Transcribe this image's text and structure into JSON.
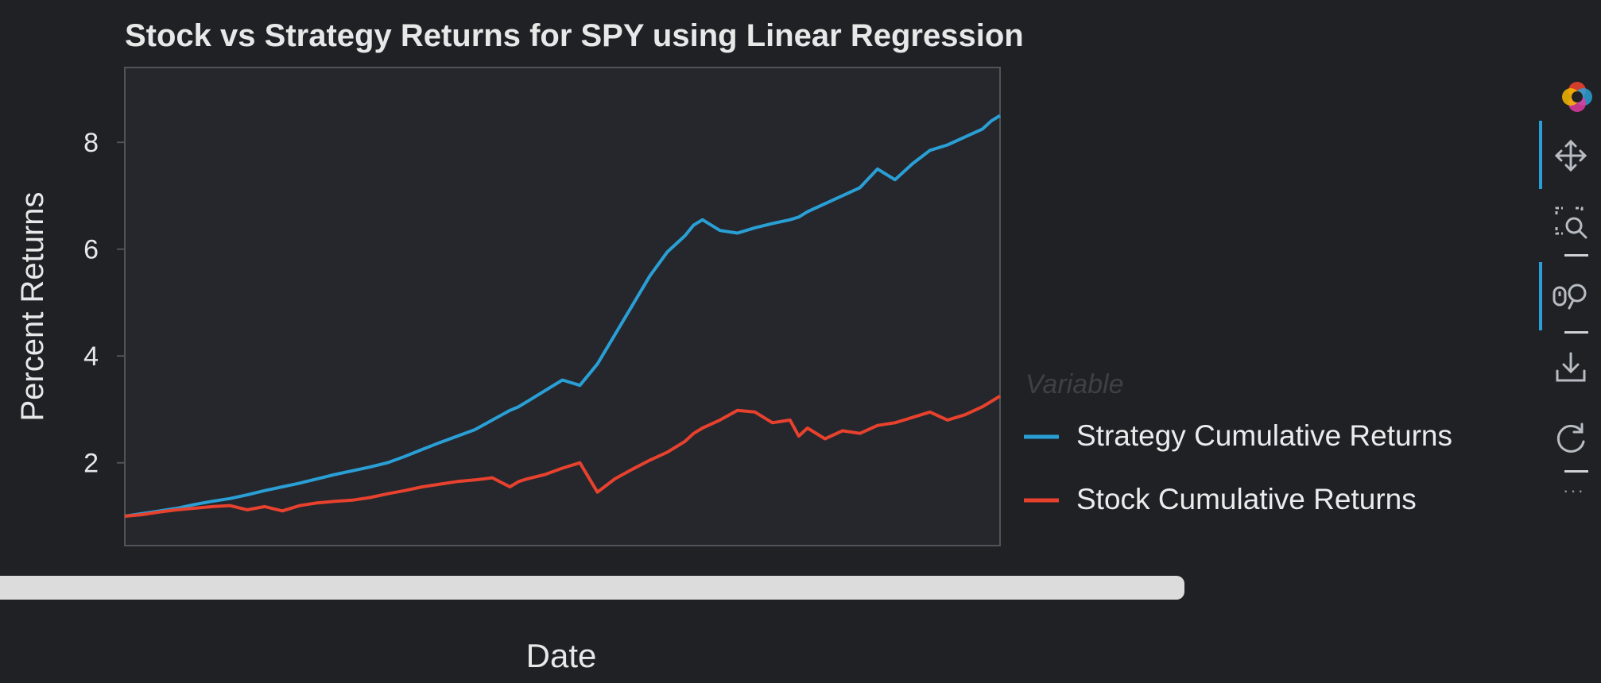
{
  "chart_data": {
    "type": "line",
    "title": "Stock vs Strategy Returns for SPY using Linear Regression",
    "xlabel": "Date",
    "ylabel": "Percent Returns",
    "yticks": [
      2,
      4,
      6,
      8
    ],
    "ylim": [
      0.45,
      9.4
    ],
    "xlim": [
      0,
      100
    ],
    "legend": {
      "title": "Variable",
      "position": "right"
    },
    "x": [
      0,
      2,
      4,
      6,
      8,
      10,
      12,
      14,
      16,
      18,
      20,
      22,
      24,
      26,
      28,
      30,
      32,
      34,
      36,
      38,
      40,
      42,
      44,
      45,
      46,
      48,
      50,
      52,
      54,
      56,
      58,
      60,
      62,
      64,
      65,
      66,
      68,
      70,
      72,
      74,
      76,
      77,
      78,
      80,
      82,
      84,
      86,
      88,
      90,
      92,
      94,
      96,
      98,
      99,
      100
    ],
    "series": [
      {
        "name": "Strategy Cumulative Returns",
        "color": "#2a9fd6",
        "values": [
          1.0,
          1.05,
          1.1,
          1.15,
          1.22,
          1.28,
          1.33,
          1.4,
          1.48,
          1.55,
          1.62,
          1.7,
          1.78,
          1.85,
          1.92,
          2.0,
          2.12,
          2.25,
          2.38,
          2.5,
          2.62,
          2.8,
          2.98,
          3.05,
          3.15,
          3.35,
          3.55,
          3.45,
          3.85,
          4.4,
          4.95,
          5.5,
          5.95,
          6.25,
          6.45,
          6.55,
          6.35,
          6.3,
          6.4,
          6.48,
          6.55,
          6.6,
          6.7,
          6.85,
          7.0,
          7.15,
          7.5,
          7.3,
          7.6,
          7.85,
          7.95,
          8.1,
          8.25,
          8.4,
          8.5
        ]
      },
      {
        "name": "Stock Cumulative Returns",
        "color": "#e8412e",
        "values": [
          1.0,
          1.03,
          1.08,
          1.12,
          1.15,
          1.18,
          1.2,
          1.12,
          1.18,
          1.1,
          1.2,
          1.25,
          1.28,
          1.3,
          1.35,
          1.42,
          1.48,
          1.55,
          1.6,
          1.65,
          1.68,
          1.72,
          1.55,
          1.65,
          1.7,
          1.78,
          1.9,
          2.0,
          1.45,
          1.7,
          1.88,
          2.05,
          2.2,
          2.4,
          2.55,
          2.65,
          2.8,
          2.98,
          2.95,
          2.75,
          2.8,
          2.5,
          2.65,
          2.45,
          2.6,
          2.55,
          2.7,
          2.75,
          2.85,
          2.95,
          2.8,
          2.9,
          3.05,
          3.15,
          3.25
        ]
      }
    ]
  },
  "toolbar": {
    "tools": [
      "bokeh-logo",
      "pan",
      "box-zoom",
      "wheel-zoom",
      "save",
      "reset"
    ]
  }
}
